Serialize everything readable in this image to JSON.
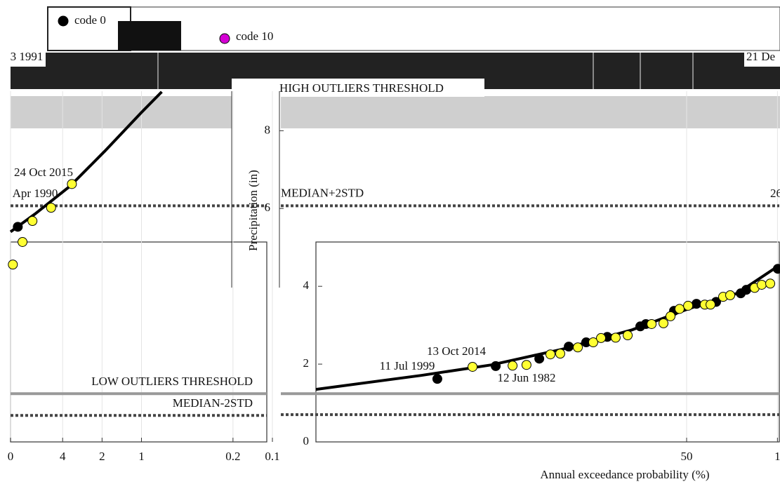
{
  "legend": [
    {
      "label": "code 0",
      "color": "#000000"
    },
    {
      "label": "code 10",
      "color": "#d400d4"
    }
  ],
  "fragments": [
    "3 1991",
    "21 De"
  ],
  "chart_data": [
    {
      "type": "scatter",
      "xscale": "log",
      "xlim": [
        10,
        0.1
      ],
      "xticks": [
        {
          "value": 10,
          "label": "0"
        },
        4,
        2,
        1,
        0.2,
        0.1
      ],
      "ylim": [
        0,
        11
      ],
      "grid": true,
      "series": [
        {
          "style": "line",
          "color": "#000000",
          "x": [
            10,
            6.5,
            3.5,
            1.9,
            1.0,
            0.7
          ],
          "values": [
            5.4,
            5.86,
            6.58,
            7.48,
            8.47,
            9.0
          ]
        },
        {
          "color": "#000000",
          "x": [
            8.8
          ],
          "values": [
            5.53
          ]
        },
        {
          "color": "#ffff33",
          "x": [
            9.6,
            8.1,
            6.8,
            4.9,
            3.4
          ],
          "values": [
            4.56,
            5.14,
            5.68,
            6.02,
            6.63
          ]
        }
      ],
      "reference_lines": [
        {
          "value": 6.07,
          "color": "#444444",
          "dash": true
        },
        {
          "value": 1.24,
          "color": "#999999",
          "label": "LOW OUTLIERS THRESHOLD"
        },
        {
          "value": 0.68,
          "color": "#444444",
          "dash": true,
          "label": "MEDIAN-2STD"
        }
      ],
      "annotations": [
        "24 Oct 2015",
        "Apr 1990"
      ]
    },
    {
      "type": "scatter",
      "xscale": "linear",
      "xlim": [
        250,
        0
      ],
      "xticks": [
        50,
        1
      ],
      "ylim": [
        0,
        11
      ],
      "yticks": [
        0,
        2,
        4,
        6,
        8
      ],
      "xlabel": "Annual exceedance probability (%)",
      "ylabel": "Precipitation (in)",
      "grid": true,
      "series": [
        {
          "style": "line",
          "color": "#000000",
          "x": [
            250,
            193.2,
            155.3,
            117.4,
            79.5,
            49.2,
            22.7,
            0
          ],
          "values": [
            1.35,
            1.71,
            1.98,
            2.38,
            2.88,
            3.42,
            3.82,
            4.54
          ]
        },
        {
          "color": "#000000",
          "x": [
            184.5,
            153.0,
            129.5,
            113.6,
            104.2,
            92.8,
            75.0,
            72.0,
            56.8,
            44.7,
            34.1,
            20.8,
            17.8,
            0.8
          ],
          "values": [
            1.62,
            1.95,
            2.14,
            2.45,
            2.56,
            2.7,
            2.97,
            3.03,
            3.37,
            3.55,
            3.6,
            3.82,
            3.91,
            4.45
          ]
        },
        {
          "color": "#ffff33",
          "x": [
            165.5,
            143.9,
            136.4,
            123.5,
            118.2,
            108.7,
            100.4,
            96.2,
            88.3,
            81.8,
            68.9,
            62.5,
            58.7,
            53.8,
            49.2,
            40.2,
            37.1,
            30.3,
            26.5,
            13.3,
            9.5,
            4.9
          ],
          "values": [
            1.93,
            1.96,
            1.98,
            2.25,
            2.27,
            2.43,
            2.56,
            2.67,
            2.68,
            2.74,
            3.03,
            3.05,
            3.23,
            3.42,
            3.5,
            3.53,
            3.53,
            3.73,
            3.77,
            3.96,
            4.04,
            4.07
          ]
        }
      ],
      "reference_lines": [
        {
          "value": 6.07,
          "color": "#444444",
          "dash": true,
          "label": "MEDIAN+2STD"
        },
        {
          "value": 1.24,
          "color": "#999999"
        },
        {
          "value": 0.7,
          "color": "#444444",
          "dash": true
        }
      ],
      "annotations": [
        "HIGH OUTLIERS THRESHOLD",
        "26",
        "13 Oct 2014",
        "11 Jul 1999",
        "12 Jun 1982"
      ]
    }
  ]
}
